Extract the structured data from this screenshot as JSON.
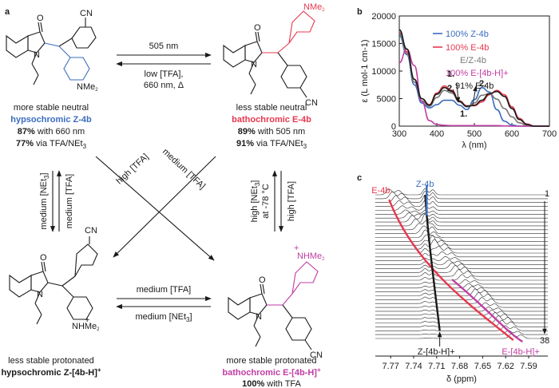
{
  "panels": {
    "a": "a",
    "b": "b",
    "c": "c"
  },
  "scheme": {
    "z4b": {
      "line1": "more stable neutral",
      "name_pre": "hypsochromic ",
      "name_main": "Z-4b",
      "y1_pct": "87%",
      "y1_rest": " with 660 nm",
      "y2_pct": "77%",
      "y2_rest": " via TFA/NEt",
      "y2_sub": "3"
    },
    "e4b": {
      "line1": "less stable neutral",
      "name_pre": "bathochromic ",
      "name_main": "E-4b",
      "y1_pct": "89%",
      "y1_rest": " with 505 nm",
      "y2_pct": "91%",
      "y2_rest": " via TFA/NEt",
      "y2_sub": "3"
    },
    "zh": {
      "line1": "less stable protonated",
      "name_pre": "hypsochromic ",
      "name_main": "Z-[4b-H]",
      "sup": "+"
    },
    "eh": {
      "line1": "more stable protonated",
      "name_pre": "bathochromic ",
      "name_main": "E-[4b-H]",
      "sup": "+",
      "y1_pct": "100%",
      "y1_rest": " with TFA"
    },
    "arrows": {
      "top_up": "505 nm",
      "top_down1": "low [TFA],",
      "top_down2": "660 nm, Δ",
      "bottom_up": "medium [TFA]",
      "bottom_down": "medium [NEt",
      "bottom_down_sub": "3",
      "left_a": "medium [NEt",
      "left_a_sub": "3",
      "left_b": "medium [TFA]",
      "right_a1": "high [NEt",
      "right_a_sub": "3",
      "right_a2": "at -78 °C",
      "right_b": "high [TFA]",
      "diag1": "high [TFA]",
      "diag2": "medium [TFA]"
    },
    "labels": {
      "cn": "CN",
      "nme2": "NMe",
      "nme2_sub": "2",
      "nhme2": "NHMe",
      "o": "O",
      "n": "N",
      "plus": "+"
    }
  },
  "colors": {
    "z": "#3b6cc0",
    "e": "#e8384f",
    "eh": "#c13da3",
    "mix": "#7a7a7a",
    "pss": "#1a1a1a"
  },
  "chart_data": [
    {
      "type": "line",
      "xlabel": "λ (nm)",
      "ylabel": "ε (L mol-1 cm-1)",
      "xlim": [
        300,
        700
      ],
      "ylim": [
        0,
        20000
      ],
      "xticks": [
        300,
        400,
        500,
        600,
        700
      ],
      "yticks": [
        0,
        5000,
        10000,
        15000,
        20000
      ],
      "legend": [
        {
          "text": "100% Z-4b",
          "color": "#3b6cc0"
        },
        {
          "text": "100% E-4b",
          "color": "#e8384f"
        },
        {
          "text": "E/Z-4b",
          "color": "#7a7a7a"
        },
        {
          "text": "100% E-[4b-H]+",
          "color": "#c13da3"
        },
        {
          "text": "91% E-4b",
          "color": "#1a1a1a"
        }
      ],
      "annotations": [
        "1.",
        "2.",
        "2.",
        "1."
      ],
      "series": [
        {
          "name": "100% Z-4b",
          "color": "#3b6cc0",
          "x": [
            300,
            320,
            340,
            360,
            380,
            400,
            420,
            440,
            460,
            480,
            500,
            520,
            540,
            560,
            580,
            600,
            620,
            640,
            660,
            680,
            700
          ],
          "y": [
            16500,
            13000,
            7500,
            4200,
            3300,
            3900,
            4700,
            4700,
            3800,
            3000,
            4800,
            7000,
            6200,
            3000,
            900,
            200,
            0,
            0,
            0,
            0,
            0
          ]
        },
        {
          "name": "100% E-4b",
          "color": "#e8384f",
          "x": [
            300,
            320,
            340,
            360,
            380,
            400,
            420,
            440,
            460,
            480,
            500,
            520,
            540,
            560,
            580,
            600,
            620,
            640,
            660,
            680,
            700
          ],
          "y": [
            17000,
            13500,
            8500,
            5000,
            3900,
            6000,
            7300,
            6500,
            4600,
            3700,
            3700,
            4400,
            5700,
            6500,
            5700,
            3500,
            1400,
            400,
            0,
            0,
            0
          ]
        },
        {
          "name": "E/Z-4b",
          "color": "#7a7a7a",
          "x": [
            300,
            320,
            340,
            360,
            380,
            400,
            420,
            440,
            460,
            480,
            500,
            520,
            540,
            560,
            580,
            600,
            620,
            640,
            660,
            680,
            700
          ],
          "y": [
            16800,
            13200,
            8000,
            4600,
            3600,
            5200,
            6500,
            6000,
            4400,
            3500,
            4200,
            5600,
            5900,
            4900,
            3200,
            1700,
            600,
            100,
            0,
            0,
            0
          ]
        },
        {
          "name": "100% E-[4b-H]+",
          "color": "#c13da3",
          "x": [
            300,
            320,
            340,
            360,
            380,
            400,
            420,
            440,
            460,
            480,
            500,
            520,
            540,
            560,
            580,
            600,
            620,
            640,
            660,
            680,
            700
          ],
          "y": [
            11500,
            14000,
            11000,
            4500,
            1000,
            300,
            150,
            100,
            100,
            100,
            100,
            100,
            100,
            100,
            50,
            0,
            0,
            0,
            0,
            0,
            0
          ]
        },
        {
          "name": "91% E-4b",
          "color": "#1a1a1a",
          "x": [
            300,
            320,
            340,
            360,
            380,
            400,
            420,
            440,
            460,
            480,
            500,
            520,
            540,
            560,
            580,
            600,
            620,
            640,
            660,
            680,
            700
          ],
          "y": [
            17500,
            14000,
            8500,
            5000,
            3800,
            5800,
            7000,
            6300,
            4500,
            3600,
            3800,
            4700,
            5900,
            6300,
            5400,
            3200,
            1200,
            300,
            0,
            0,
            0
          ]
        }
      ]
    },
    {
      "type": "line",
      "xlabel": "δ (ppm)",
      "xticks": [
        7.77,
        7.74,
        7.71,
        7.68,
        7.65,
        7.62,
        7.59
      ],
      "xlim": [
        7.79,
        7.565
      ],
      "trace_count_labels": [
        "1",
        "38"
      ],
      "labels": {
        "e": "E-4b",
        "z": "Z-4b",
        "zh": "Z-[4b-H]+",
        "eh": "E-[4b-H]+"
      }
    }
  ]
}
